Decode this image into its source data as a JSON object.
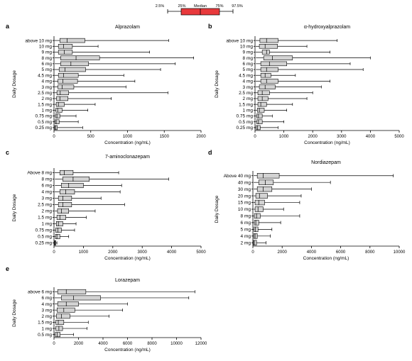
{
  "legend": {
    "labels": [
      "2.5%",
      "25%",
      "Median",
      "75%",
      "97.5%"
    ],
    "box_color": "#e8393c"
  },
  "box_fill": "#d3d3d3",
  "chart_data": [
    {
      "type": "boxplot",
      "panel": "a",
      "title": "Alprazolam",
      "xlabel": "Concentration (ng/mL)",
      "ylabel": "Daily Dosage",
      "xlim": [
        0,
        2000
      ],
      "xticks": [
        0,
        500,
        1000,
        1500,
        2000
      ],
      "categories": [
        "above 10 mg",
        "10 mg",
        "9 mg",
        "8 mg",
        "6 mg",
        "5 mg",
        "4.5 mg",
        "4 mg",
        "3 mg",
        "2.5 mg",
        "2 mg",
        "1.5 mg",
        "1 mg",
        "0.75 mg",
        "0.5 mg",
        "0.25 mg"
      ],
      "boxes": [
        {
          "p2_5": 5,
          "q1": 80,
          "median": 180,
          "q3": 420,
          "p97_5": 1560
        },
        {
          "p2_5": 5,
          "q1": 60,
          "median": 130,
          "q3": 250,
          "p97_5": 600
        },
        {
          "p2_5": 5,
          "q1": 60,
          "median": 140,
          "q3": 250,
          "p97_5": 1300
        },
        {
          "p2_5": 10,
          "q1": 90,
          "median": 300,
          "q3": 620,
          "p97_5": 1900
        },
        {
          "p2_5": 10,
          "q1": 90,
          "median": 230,
          "q3": 470,
          "p97_5": 1650
        },
        {
          "p2_5": 5,
          "q1": 70,
          "median": 150,
          "q3": 430,
          "p97_5": 1450
        },
        {
          "p2_5": 5,
          "q1": 60,
          "median": 130,
          "q3": 330,
          "p97_5": 950
        },
        {
          "p2_5": 5,
          "q1": 55,
          "median": 120,
          "q3": 320,
          "p97_5": 1100
        },
        {
          "p2_5": 5,
          "q1": 55,
          "median": 110,
          "q3": 270,
          "p97_5": 980
        },
        {
          "p2_5": 5,
          "q1": 40,
          "median": 85,
          "q3": 200,
          "p97_5": 1550
        },
        {
          "p2_5": 5,
          "q1": 35,
          "median": 80,
          "q3": 190,
          "p97_5": 780
        },
        {
          "p2_5": 5,
          "q1": 30,
          "median": 60,
          "q3": 140,
          "p97_5": 560
        },
        {
          "p2_5": 3,
          "q1": 25,
          "median": 50,
          "q3": 110,
          "p97_5": 460
        },
        {
          "p2_5": 3,
          "q1": 20,
          "median": 40,
          "q3": 80,
          "p97_5": 300
        },
        {
          "p2_5": 3,
          "q1": 15,
          "median": 30,
          "q3": 70,
          "p97_5": 330
        },
        {
          "p2_5": 2,
          "q1": 10,
          "median": 20,
          "q3": 45,
          "p97_5": 390
        }
      ]
    },
    {
      "type": "boxplot",
      "panel": "b",
      "title": "α-hydroxyalprazolam",
      "xlabel": "Concentration (ng/mL)",
      "ylabel": "Daily Dosage",
      "xlim": [
        0,
        5000
      ],
      "xticks": [
        0,
        1000,
        2000,
        3000,
        4000,
        5000
      ],
      "categories": [
        "above 10 mg",
        "10 mg",
        "9 mg",
        "8 mg",
        "6 mg",
        "5 mg",
        "4.5 mg",
        "4 mg",
        "3 mg",
        "2.5 mg",
        "2 mg",
        "1.5 mg",
        "1 mg",
        "0.75 mg",
        "0.5 mg",
        "0.25 mg"
      ],
      "boxes": [
        {
          "p2_5": 20,
          "q1": 170,
          "median": 400,
          "q3": 800,
          "p97_5": 2850
        },
        {
          "p2_5": 20,
          "q1": 150,
          "median": 350,
          "q3": 780,
          "p97_5": 1800
        },
        {
          "p2_5": 20,
          "q1": 250,
          "median": 400,
          "q3": 500,
          "p97_5": 2600
        },
        {
          "p2_5": 30,
          "q1": 300,
          "median": 600,
          "q3": 1300,
          "p97_5": 4000
        },
        {
          "p2_5": 30,
          "q1": 200,
          "median": 500,
          "q3": 1100,
          "p97_5": 3300
        },
        {
          "p2_5": 30,
          "q1": 200,
          "median": 400,
          "q3": 800,
          "p97_5": 3750
        },
        {
          "p2_5": 20,
          "q1": 200,
          "median": 350,
          "q3": 550,
          "p97_5": 1400
        },
        {
          "p2_5": 20,
          "q1": 200,
          "median": 400,
          "q3": 800,
          "p97_5": 2600
        },
        {
          "p2_5": 20,
          "q1": 150,
          "median": 350,
          "q3": 700,
          "p97_5": 2300
        },
        {
          "p2_5": 10,
          "q1": 100,
          "median": 250,
          "q3": 500,
          "p97_5": 2000
        },
        {
          "p2_5": 10,
          "q1": 100,
          "median": 250,
          "q3": 450,
          "p97_5": 1800
        },
        {
          "p2_5": 10,
          "q1": 100,
          "median": 200,
          "q3": 400,
          "p97_5": 1300
        },
        {
          "p2_5": 10,
          "q1": 80,
          "median": 150,
          "q3": 320,
          "p97_5": 1100
        },
        {
          "p2_5": 10,
          "q1": 60,
          "median": 120,
          "q3": 250,
          "p97_5": 600
        },
        {
          "p2_5": 10,
          "q1": 60,
          "median": 120,
          "q3": 250,
          "p97_5": 1000
        },
        {
          "p2_5": 5,
          "q1": 40,
          "median": 90,
          "q3": 180,
          "p97_5": 800
        }
      ]
    },
    {
      "type": "boxplot",
      "panel": "c",
      "title": "7-aminoclonazepam",
      "xlabel": "Concentration (ng/mL)",
      "ylabel": "Daily Dosage",
      "xlim": [
        0,
        5000
      ],
      "xticks": [
        0,
        1000,
        2000,
        3000,
        4000,
        5000
      ],
      "categories": [
        "Above 8 mg",
        "8 mg",
        "6 mg",
        "4 mg",
        "3 mg",
        "2.5 mg",
        "2 mg",
        "1.5 mg",
        "1 mg",
        "0.75 mg",
        "0.5 mg",
        "0.25 mg"
      ],
      "boxes": [
        {
          "p2_5": 20,
          "q1": 200,
          "median": 350,
          "q3": 650,
          "p97_5": 2200
        },
        {
          "p2_5": 30,
          "q1": 300,
          "median": 650,
          "q3": 1200,
          "p97_5": 3900
        },
        {
          "p2_5": 30,
          "q1": 250,
          "median": 500,
          "q3": 1000,
          "p97_5": 2300
        },
        {
          "p2_5": 20,
          "q1": 200,
          "median": 400,
          "q3": 700,
          "p97_5": 2250
        },
        {
          "p2_5": 20,
          "q1": 150,
          "median": 300,
          "q3": 600,
          "p97_5": 1600
        },
        {
          "p2_5": 20,
          "q1": 150,
          "median": 300,
          "q3": 600,
          "p97_5": 2400
        },
        {
          "p2_5": 20,
          "q1": 120,
          "median": 250,
          "q3": 500,
          "p97_5": 1400
        },
        {
          "p2_5": 15,
          "q1": 100,
          "median": 200,
          "q3": 400,
          "p97_5": 1100
        },
        {
          "p2_5": 10,
          "q1": 80,
          "median": 150,
          "q3": 300,
          "p97_5": 750
        },
        {
          "p2_5": 10,
          "q1": 60,
          "median": 130,
          "q3": 250,
          "p97_5": 700
        },
        {
          "p2_5": 10,
          "q1": 50,
          "median": 100,
          "q3": 200,
          "p97_5": 500
        },
        {
          "p2_5": 5,
          "q1": 20,
          "median": 40,
          "q3": 60,
          "p97_5": 100
        }
      ]
    },
    {
      "type": "boxplot",
      "panel": "d",
      "title": "Nordiazepam",
      "xlabel": "Concentration (ng/mL)",
      "ylabel": "Daily Dosage",
      "xlim": [
        0,
        10000
      ],
      "xticks": [
        0,
        2000,
        4000,
        6000,
        8000,
        10000
      ],
      "categories": [
        "Above 40 mg",
        "40 mg",
        "30 mg",
        "20 mg",
        "15 mg",
        "10 mg",
        "8 mg",
        "6 mg",
        "5 mg",
        "4 mg",
        "2 mg"
      ],
      "boxes": [
        {
          "p2_5": 50,
          "q1": 300,
          "median": 700,
          "q3": 1800,
          "p97_5": 9600
        },
        {
          "p2_5": 50,
          "q1": 400,
          "median": 850,
          "q3": 1400,
          "p97_5": 5300
        },
        {
          "p2_5": 50,
          "q1": 300,
          "median": 700,
          "q3": 1300,
          "p97_5": 4000
        },
        {
          "p2_5": 40,
          "q1": 200,
          "median": 450,
          "q3": 1000,
          "p97_5": 3300
        },
        {
          "p2_5": 30,
          "q1": 150,
          "median": 400,
          "q3": 800,
          "p97_5": 3200
        },
        {
          "p2_5": 30,
          "q1": 150,
          "median": 350,
          "q3": 700,
          "p97_5": 2100
        },
        {
          "p2_5": 20,
          "q1": 100,
          "median": 250,
          "q3": 500,
          "p97_5": 3200
        },
        {
          "p2_5": 20,
          "q1": 100,
          "median": 200,
          "q3": 400,
          "p97_5": 1900
        },
        {
          "p2_5": 20,
          "q1": 80,
          "median": 180,
          "q3": 350,
          "p97_5": 1300
        },
        {
          "p2_5": 20,
          "q1": 60,
          "median": 150,
          "q3": 300,
          "p97_5": 1200
        },
        {
          "p2_5": 10,
          "q1": 40,
          "median": 100,
          "q3": 250,
          "p97_5": 900
        }
      ]
    },
    {
      "type": "boxplot",
      "panel": "e",
      "title": "Lorazepam",
      "xlabel": "Concentration (ng/mL)",
      "ylabel": "Daily Dosage",
      "xlim": [
        0,
        12000
      ],
      "xticks": [
        0,
        2000,
        4000,
        6000,
        8000,
        10000,
        12000
      ],
      "categories": [
        "above 6 mg",
        "6 mg",
        "4 mg",
        "3 mg",
        "2 mg",
        "1.5 mg",
        "1 mg",
        "0.5 mg"
      ],
      "boxes": [
        {
          "p2_5": 50,
          "q1": 300,
          "median": 1000,
          "q3": 2600,
          "p97_5": 11500
        },
        {
          "p2_5": 50,
          "q1": 600,
          "median": 1600,
          "q3": 3800,
          "p97_5": 11000
        },
        {
          "p2_5": 50,
          "q1": 300,
          "median": 1000,
          "q3": 2000,
          "p97_5": 6000
        },
        {
          "p2_5": 40,
          "q1": 250,
          "median": 800,
          "q3": 1700,
          "p97_5": 5600
        },
        {
          "p2_5": 30,
          "q1": 200,
          "median": 600,
          "q3": 1300,
          "p97_5": 4500
        },
        {
          "p2_5": 20,
          "q1": 150,
          "median": 350,
          "q3": 800,
          "p97_5": 2800
        },
        {
          "p2_5": 20,
          "q1": 150,
          "median": 400,
          "q3": 700,
          "p97_5": 2700
        },
        {
          "p2_5": 10,
          "q1": 100,
          "median": 250,
          "q3": 500,
          "p97_5": 1600
        }
      ]
    }
  ]
}
